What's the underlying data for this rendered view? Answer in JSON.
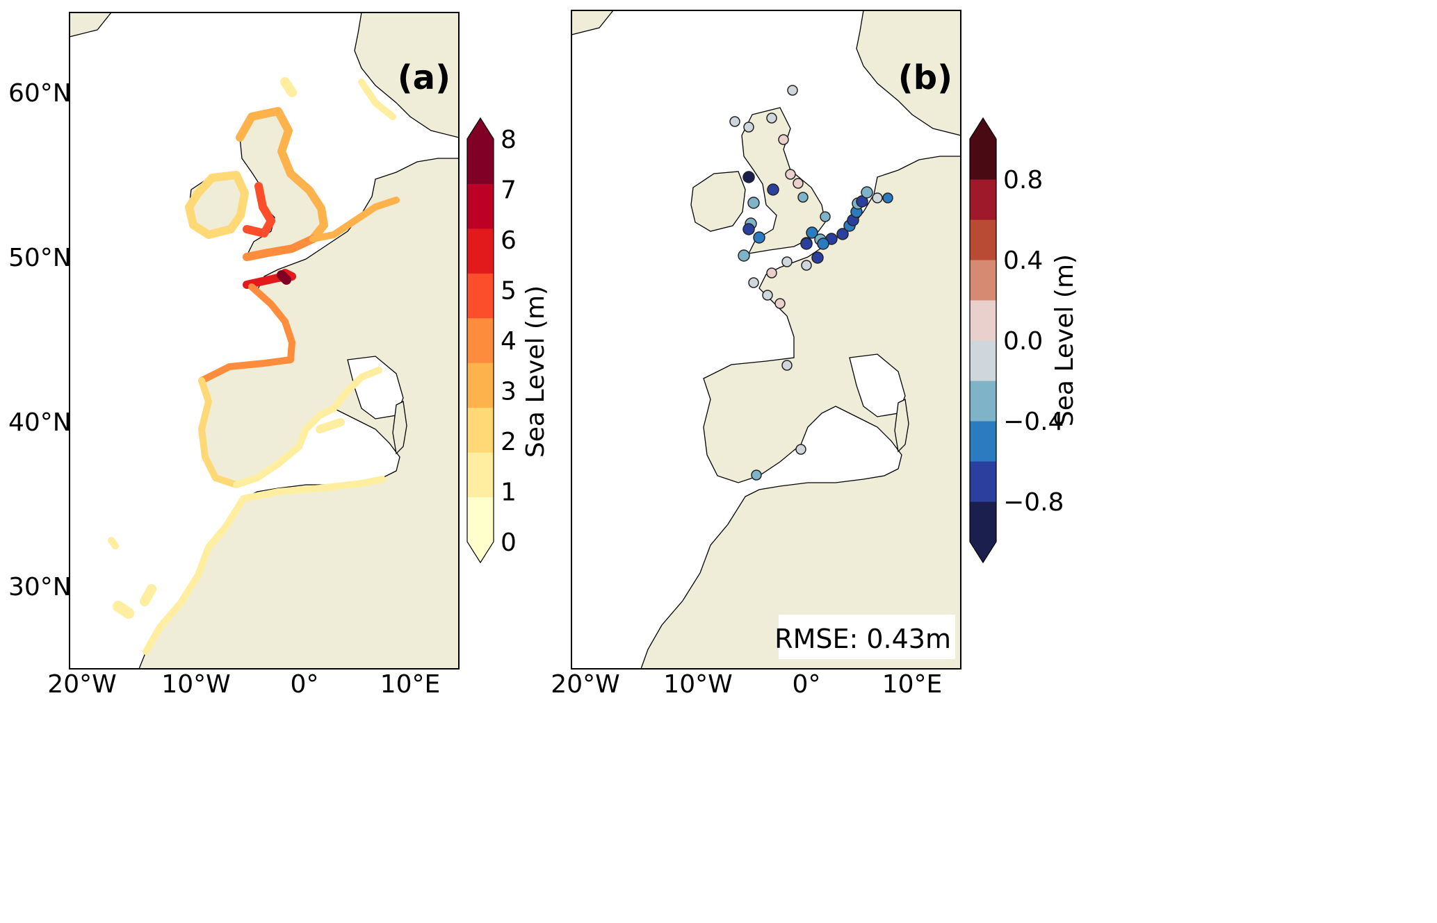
{
  "panels": [
    {
      "label": "(a)",
      "colorbar": {
        "title": "Sea Level (m)",
        "ticks": [
          "0",
          "1",
          "2",
          "3",
          "4",
          "5",
          "6",
          "7",
          "8"
        ],
        "colors": [
          "#ffffcc",
          "#ffeda0",
          "#fed976",
          "#feb24c",
          "#fd8d3c",
          "#fc4e2a",
          "#e31a1c",
          "#bd0026",
          "#800026"
        ]
      }
    },
    {
      "label": "(b)",
      "rmse": "RMSE: 0.43m",
      "colorbar": {
        "title": "Sea Level (m)",
        "ticks": [
          "0.8",
          "0.4",
          "0.0",
          "−0.4",
          "−0.8"
        ],
        "colors": [
          "#1b1f4e",
          "#2b3f9e",
          "#2a7bc0",
          "#7fb3c8",
          "#cfd6dc",
          "#ead0cc",
          "#d68a72",
          "#b94a33",
          "#9e1a2a",
          "#4a0a14"
        ]
      }
    }
  ],
  "axes": {
    "lat_labels": [
      "60°N",
      "50°N",
      "40°N",
      "30°N"
    ],
    "lon_labels": [
      "20°W",
      "10°W",
      "0°",
      "10°E"
    ]
  },
  "colors": {
    "land": "#efedd8",
    "ocean": "#ffffff",
    "coast": "#000000"
  }
}
